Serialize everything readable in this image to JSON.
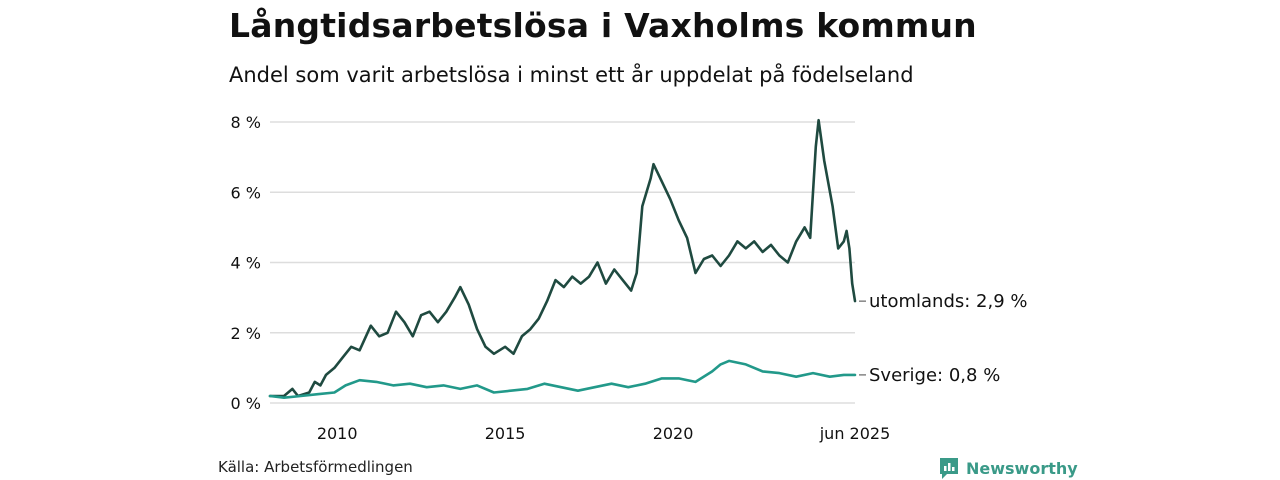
{
  "header": {
    "title": "Långtidsarbetslösa i Vaxholms kommun",
    "subtitle": "Andel som varit arbetslösa i minst ett år uppdelat på födelseland"
  },
  "footer": {
    "source": "Källa: Arbetsförmedlingen",
    "brand": "Newsworthy"
  },
  "colors": {
    "utomlands": "#1f4a40",
    "sverige": "#22998a",
    "grid": "#dddddd",
    "brand": "#3a9a88"
  },
  "chart_data": {
    "type": "line",
    "x_range": [
      "2008-01",
      "2025-06"
    ],
    "ylim": [
      0,
      8
    ],
    "y_ticks": [
      0,
      2,
      4,
      6,
      8
    ],
    "y_tick_labels": [
      "0 %",
      "2 %",
      "4 %",
      "6 %",
      "8 %"
    ],
    "x_ticks": [
      {
        "date": "2010-01",
        "label": "2010"
      },
      {
        "date": "2015-01",
        "label": "2015"
      },
      {
        "date": "2020-01",
        "label": "2020"
      },
      {
        "date": "2025-06",
        "label": "jun 2025"
      }
    ],
    "grid": true,
    "series": [
      {
        "key": "utomlands",
        "end_label": "utomlands: 2,9 %",
        "points": [
          [
            "2008-01",
            0.2
          ],
          [
            "2008-06",
            0.2
          ],
          [
            "2008-09",
            0.4
          ],
          [
            "2008-11",
            0.2
          ],
          [
            "2009-03",
            0.3
          ],
          [
            "2009-05",
            0.6
          ],
          [
            "2009-07",
            0.5
          ],
          [
            "2009-09",
            0.8
          ],
          [
            "2009-12",
            1.0
          ],
          [
            "2010-03",
            1.3
          ],
          [
            "2010-06",
            1.6
          ],
          [
            "2010-09",
            1.5
          ],
          [
            "2011-01",
            2.2
          ],
          [
            "2011-04",
            1.9
          ],
          [
            "2011-07",
            2.0
          ],
          [
            "2011-10",
            2.6
          ],
          [
            "2012-01",
            2.3
          ],
          [
            "2012-04",
            1.9
          ],
          [
            "2012-07",
            2.5
          ],
          [
            "2012-10",
            2.6
          ],
          [
            "2013-01",
            2.3
          ],
          [
            "2013-04",
            2.6
          ],
          [
            "2013-07",
            3.0
          ],
          [
            "2013-09",
            3.3
          ],
          [
            "2013-12",
            2.8
          ],
          [
            "2014-03",
            2.1
          ],
          [
            "2014-06",
            1.6
          ],
          [
            "2014-09",
            1.4
          ],
          [
            "2015-01",
            1.6
          ],
          [
            "2015-04",
            1.4
          ],
          [
            "2015-07",
            1.9
          ],
          [
            "2015-10",
            2.1
          ],
          [
            "2016-01",
            2.4
          ],
          [
            "2016-04",
            2.9
          ],
          [
            "2016-07",
            3.5
          ],
          [
            "2016-10",
            3.3
          ],
          [
            "2017-01",
            3.6
          ],
          [
            "2017-04",
            3.4
          ],
          [
            "2017-07",
            3.6
          ],
          [
            "2017-10",
            4.0
          ],
          [
            "2018-01",
            3.4
          ],
          [
            "2018-04",
            3.8
          ],
          [
            "2018-07",
            3.5
          ],
          [
            "2018-10",
            3.2
          ],
          [
            "2018-12",
            3.7
          ],
          [
            "2019-02",
            5.6
          ],
          [
            "2019-05",
            6.4
          ],
          [
            "2019-06",
            6.8
          ],
          [
            "2019-09",
            6.3
          ],
          [
            "2019-12",
            5.8
          ],
          [
            "2020-03",
            5.2
          ],
          [
            "2020-06",
            4.7
          ],
          [
            "2020-09",
            3.7
          ],
          [
            "2020-12",
            4.1
          ],
          [
            "2021-03",
            4.2
          ],
          [
            "2021-06",
            3.9
          ],
          [
            "2021-09",
            4.2
          ],
          [
            "2021-12",
            4.6
          ],
          [
            "2022-03",
            4.4
          ],
          [
            "2022-06",
            4.6
          ],
          [
            "2022-09",
            4.3
          ],
          [
            "2022-12",
            4.5
          ],
          [
            "2023-03",
            4.2
          ],
          [
            "2023-06",
            4.0
          ],
          [
            "2023-09",
            4.6
          ],
          [
            "2023-12",
            5.0
          ],
          [
            "2024-02",
            4.7
          ],
          [
            "2024-04",
            7.3
          ],
          [
            "2024-05",
            8.05
          ],
          [
            "2024-07",
            6.9
          ],
          [
            "2024-10",
            5.6
          ],
          [
            "2024-12",
            4.4
          ],
          [
            "2025-02",
            4.6
          ],
          [
            "2025-03",
            4.9
          ],
          [
            "2025-04",
            4.4
          ],
          [
            "2025-05",
            3.4
          ],
          [
            "2025-06",
            2.9
          ]
        ]
      },
      {
        "key": "sverige",
        "end_label": "Sverige: 0,8 %",
        "points": [
          [
            "2008-01",
            0.2
          ],
          [
            "2008-06",
            0.15
          ],
          [
            "2008-12",
            0.2
          ],
          [
            "2009-06",
            0.25
          ],
          [
            "2009-12",
            0.3
          ],
          [
            "2010-04",
            0.5
          ],
          [
            "2010-09",
            0.65
          ],
          [
            "2011-03",
            0.6
          ],
          [
            "2011-09",
            0.5
          ],
          [
            "2012-03",
            0.55
          ],
          [
            "2012-09",
            0.45
          ],
          [
            "2013-03",
            0.5
          ],
          [
            "2013-09",
            0.4
          ],
          [
            "2014-03",
            0.5
          ],
          [
            "2014-09",
            0.3
          ],
          [
            "2015-03",
            0.35
          ],
          [
            "2015-09",
            0.4
          ],
          [
            "2016-03",
            0.55
          ],
          [
            "2016-09",
            0.45
          ],
          [
            "2017-03",
            0.35
          ],
          [
            "2017-09",
            0.45
          ],
          [
            "2018-03",
            0.55
          ],
          [
            "2018-09",
            0.45
          ],
          [
            "2019-03",
            0.55
          ],
          [
            "2019-09",
            0.7
          ],
          [
            "2020-03",
            0.7
          ],
          [
            "2020-09",
            0.6
          ],
          [
            "2021-03",
            0.9
          ],
          [
            "2021-06",
            1.1
          ],
          [
            "2021-09",
            1.2
          ],
          [
            "2022-03",
            1.1
          ],
          [
            "2022-09",
            0.9
          ],
          [
            "2023-03",
            0.85
          ],
          [
            "2023-09",
            0.75
          ],
          [
            "2024-03",
            0.85
          ],
          [
            "2024-09",
            0.75
          ],
          [
            "2025-02",
            0.8
          ],
          [
            "2025-06",
            0.8
          ]
        ]
      }
    ]
  }
}
